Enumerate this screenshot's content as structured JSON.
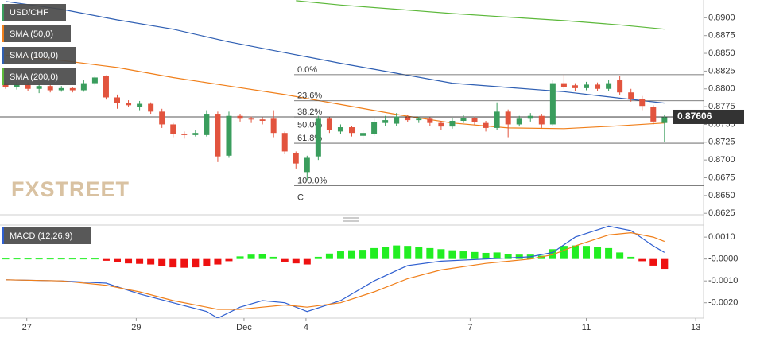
{
  "chart_data": [
    {
      "type": "candlestick",
      "name": "USD/CHF",
      "up_color": "#3a9d5d",
      "down_color": "#e2543e",
      "xlim": [
        -0.5,
        62.5
      ],
      "ylim": [
        0.8623,
        0.8925
      ],
      "yticks": [
        0.8625,
        {
          "value": 0.865,
          "label": "0.8650"
        },
        0.8675,
        {
          "value": 0.87,
          "label": "0.8700"
        },
        0.8725,
        {
          "value": 0.875,
          "label": "0.8750"
        },
        0.8775,
        {
          "value": 0.88,
          "label": "0.8800"
        },
        0.8825,
        {
          "value": 0.885,
          "label": "0.8850"
        },
        0.8875,
        {
          "value": 0.89,
          "label": "0.8900"
        }
      ],
      "open": [
        0.8808,
        0.8803,
        0.8806,
        0.88,
        0.8804,
        0.8798,
        0.8801,
        0.8798,
        0.8808,
        0.8818,
        0.8788,
        0.878,
        0.8775,
        0.8779,
        0.8768,
        0.875,
        0.8737,
        0.8735,
        0.8735,
        0.8765,
        0.8706,
        0.8762,
        0.8758,
        0.8757,
        0.8758,
        0.8738,
        0.871,
        0.8683,
        0.8705,
        0.8758,
        0.874,
        0.8746,
        0.8734,
        0.8737,
        0.8752,
        0.8751,
        0.876,
        0.8756,
        0.8758,
        0.8752,
        0.8747,
        0.8755,
        0.8759,
        0.8752,
        0.8745,
        0.8768,
        0.875,
        0.8758,
        0.8762,
        0.875,
        0.8808,
        0.8805,
        0.8801,
        0.8806,
        0.88,
        0.8812,
        0.8795,
        0.8786,
        0.8774,
        0.8752
      ],
      "high": [
        0.8812,
        0.881,
        0.8809,
        0.8807,
        0.8806,
        0.8804,
        0.8803,
        0.8812,
        0.8818,
        0.8819,
        0.8792,
        0.8784,
        0.8783,
        0.8781,
        0.8772,
        0.8752,
        0.874,
        0.8742,
        0.877,
        0.8768,
        0.8768,
        0.8765,
        0.8761,
        0.876,
        0.877,
        0.874,
        0.8712,
        0.8706,
        0.8762,
        0.876,
        0.875,
        0.8748,
        0.8742,
        0.8758,
        0.8762,
        0.8766,
        0.8763,
        0.8761,
        0.876,
        0.8755,
        0.8759,
        0.8763,
        0.8761,
        0.8755,
        0.8781,
        0.8771,
        0.8762,
        0.8766,
        0.8765,
        0.8813,
        0.882,
        0.8808,
        0.881,
        0.8809,
        0.8812,
        0.8818,
        0.88,
        0.879,
        0.8777,
        0.8764
      ],
      "low": [
        0.88,
        0.8799,
        0.8797,
        0.8794,
        0.8795,
        0.8796,
        0.8795,
        0.8796,
        0.8805,
        0.8785,
        0.8772,
        0.8774,
        0.877,
        0.8765,
        0.8745,
        0.8732,
        0.873,
        0.8733,
        0.8733,
        0.8697,
        0.8703,
        0.8754,
        0.8752,
        0.875,
        0.8732,
        0.8708,
        0.8688,
        0.8672,
        0.87,
        0.8738,
        0.8736,
        0.8733,
        0.8728,
        0.8734,
        0.8748,
        0.8748,
        0.8753,
        0.8752,
        0.8748,
        0.8742,
        0.8744,
        0.8752,
        0.8749,
        0.874,
        0.8742,
        0.8732,
        0.8747,
        0.8754,
        0.8745,
        0.8748,
        0.88,
        0.8797,
        0.8798,
        0.8797,
        0.8797,
        0.8792,
        0.8782,
        0.877,
        0.875,
        0.8725
      ],
      "close": [
        0.8803,
        0.8806,
        0.88,
        0.8804,
        0.8798,
        0.8801,
        0.8798,
        0.8808,
        0.8816,
        0.8788,
        0.878,
        0.8777,
        0.8779,
        0.8768,
        0.875,
        0.8737,
        0.8735,
        0.8738,
        0.8765,
        0.8705,
        0.8762,
        0.8758,
        0.8757,
        0.8755,
        0.8738,
        0.8712,
        0.8695,
        0.8703,
        0.8758,
        0.8742,
        0.8746,
        0.8738,
        0.8738,
        0.8753,
        0.8756,
        0.8761,
        0.8756,
        0.8758,
        0.8752,
        0.8747,
        0.8755,
        0.8759,
        0.8753,
        0.8745,
        0.8768,
        0.875,
        0.8758,
        0.8762,
        0.875,
        0.8808,
        0.8803,
        0.8801,
        0.8806,
        0.88,
        0.8808,
        0.8795,
        0.8786,
        0.8776,
        0.8754,
        0.876
      ],
      "series": [
        {
          "name": "SMA (50,0)",
          "color": "#f07f1a",
          "x": [
            0,
            5,
            10,
            15,
            20,
            25,
            30,
            35,
            40,
            45,
            50,
            55,
            59
          ],
          "values": [
            0.8847,
            0.884,
            0.883,
            0.8816,
            0.8804,
            0.8792,
            0.8778,
            0.8764,
            0.8752,
            0.8745,
            0.8744,
            0.8748,
            0.8752
          ]
        },
        {
          "name": "SMA (100,0)",
          "color": "#2f5fb3",
          "x": [
            0,
            5,
            10,
            15,
            20,
            25,
            30,
            35,
            40,
            45,
            50,
            55,
            59
          ],
          "values": [
            0.8923,
            0.8912,
            0.8897,
            0.8884,
            0.8866,
            0.8851,
            0.8836,
            0.8822,
            0.8808,
            0.8802,
            0.8796,
            0.8787,
            0.878
          ]
        },
        {
          "name": "SMA (200,0)",
          "color": "#5cb83a",
          "x": [
            26,
            30,
            35,
            40,
            45,
            50,
            55,
            59
          ],
          "values": [
            0.8924,
            0.8918,
            0.8912,
            0.8906,
            0.8901,
            0.8896,
            0.889,
            0.8884
          ]
        }
      ],
      "fib_levels": [
        {
          "label": "0.0%",
          "value": 0.882
        },
        {
          "label": "23.6%",
          "value": 0.87832
        },
        {
          "label": "38.2%",
          "value": 0.87604
        },
        {
          "label": "50.0%",
          "value": 0.8742
        },
        {
          "label": "61.8%",
          "value": 0.87236
        },
        {
          "label": "100.0%",
          "value": 0.8664
        }
      ],
      "fib_anchor_label": "C",
      "last_price": 0.87606,
      "watermark": "FXSTREET"
    },
    {
      "type": "macd",
      "name": "MACD (12,26,9)",
      "up_color": "#22ee22",
      "down_color": "#ee1111",
      "xlim": [
        -0.5,
        62.5
      ],
      "ylim": [
        -0.0027,
        0.00155
      ],
      "yticks": [
        {
          "value": 0.001,
          "label": "0.0010"
        },
        {
          "value": 0,
          "label": "-0.0000"
        },
        {
          "value": -0.001,
          "label": "-0.0010"
        },
        {
          "value": -0.002,
          "label": "-0.0020"
        }
      ],
      "xticks": [
        {
          "value": 1.9,
          "label": "27"
        },
        {
          "value": 11.7,
          "label": "29"
        },
        {
          "value": 21.35,
          "label": "Dec"
        },
        {
          "value": 26.9,
          "label": "4"
        },
        {
          "value": 41.6,
          "label": "7"
        },
        {
          "value": 52,
          "label": "11"
        },
        {
          "value": 61.8,
          "label": "13"
        }
      ],
      "histogram": [
        2e-05,
        2e-05,
        2e-05,
        2e-05,
        2e-05,
        2e-05,
        2e-05,
        2e-05,
        2e-05,
        -8e-05,
        -0.00015,
        -0.0002,
        -0.00022,
        -0.00025,
        -0.00032,
        -0.00038,
        -0.0004,
        -0.00038,
        -0.00032,
        -0.00025,
        -0.0001,
        0.00012,
        0.0002,
        0.00022,
        0.0001,
        -0.00012,
        -0.0002,
        -0.00025,
        0.0001,
        0.00025,
        0.00035,
        0.0004,
        0.00042,
        0.0005,
        0.00055,
        0.00062,
        0.0006,
        0.00055,
        0.0005,
        0.00045,
        0.0004,
        0.00035,
        0.00032,
        0.00028,
        0.0003,
        0.00022,
        0.0002,
        0.0002,
        0.00015,
        0.00045,
        0.0006,
        0.00062,
        0.0006,
        0.00055,
        0.0005,
        0.0003,
        0.0001,
        -0.0001,
        -0.0003,
        -0.00045
      ],
      "series": [
        {
          "name": "MACD",
          "color": "#2f5fd0",
          "x": [
            0,
            5,
            9,
            12,
            15,
            18,
            19,
            21,
            23,
            25,
            27,
            30,
            33,
            36,
            39,
            43,
            47,
            49,
            51,
            54,
            56,
            58,
            59
          ],
          "values": [
            -0.00095,
            -0.001,
            -0.0011,
            -0.0016,
            -0.002,
            -0.0024,
            -0.0027,
            -0.0022,
            -0.0019,
            -0.002,
            -0.0024,
            -0.0019,
            -0.001,
            -0.0003,
            -0.0001,
            0,
            0.0001,
            0.0003,
            0.001,
            0.0015,
            0.0013,
            0.0006,
            0.0003
          ]
        },
        {
          "name": "Signal",
          "color": "#f07f1a",
          "x": [
            0,
            5,
            9,
            12,
            15,
            18,
            19,
            21,
            23,
            25,
            27,
            30,
            33,
            36,
            39,
            43,
            47,
            49,
            51,
            54,
            56,
            58,
            59
          ],
          "values": [
            -0.00095,
            -0.001,
            -0.0012,
            -0.0015,
            -0.0019,
            -0.0022,
            -0.0023,
            -0.0023,
            -0.0022,
            -0.0021,
            -0.0022,
            -0.002,
            -0.0015,
            -0.0009,
            -0.0005,
            -0.0002,
            0,
            0.0002,
            0.0006,
            0.0011,
            0.0012,
            0.001,
            0.0008
          ]
        }
      ]
    }
  ]
}
